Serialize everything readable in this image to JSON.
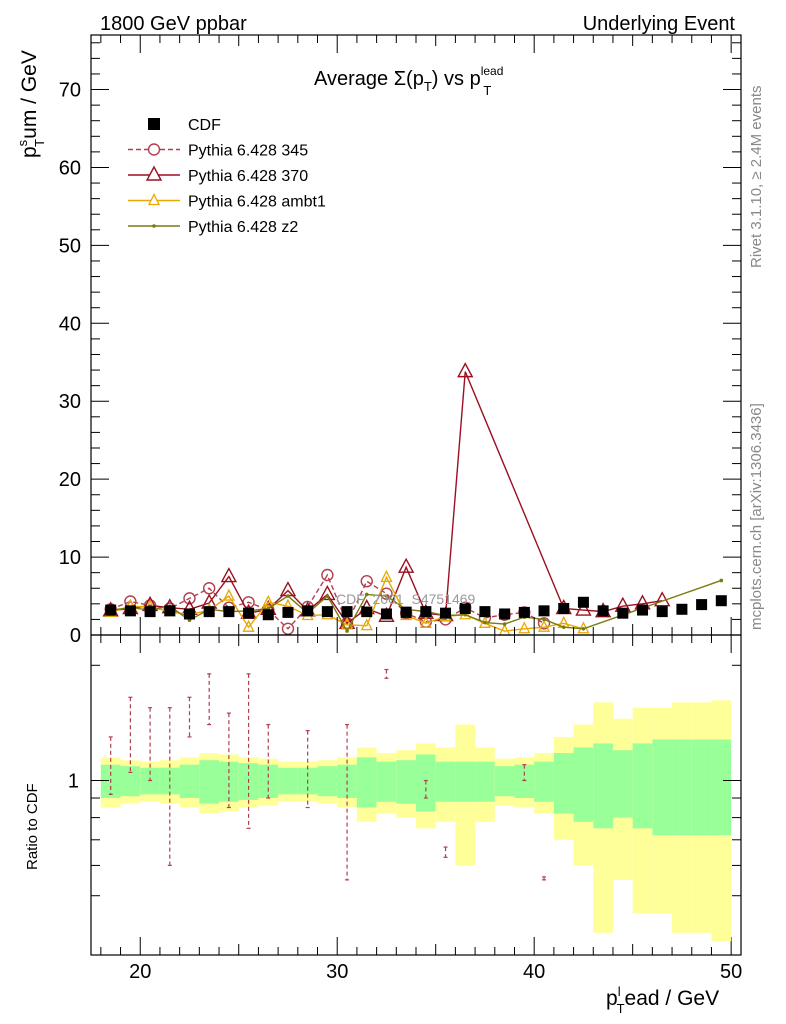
{
  "header": {
    "left": "1800 GeV ppbar",
    "right": "Underlying Event"
  },
  "side_labels": {
    "rivet": "Rivet 3.1.10, ≥ 2.4M events",
    "mcplots": "mcplots.cern.ch [arXiv:1306.3436]"
  },
  "watermark": "CDF_2001_S4751469",
  "chart_data": {
    "type": "line",
    "title": "Average Σ(p_T) vs p_T^lead",
    "title_parts": {
      "main": "Average Σ(p",
      "sub1": "T",
      "mid": ") vs p",
      "sub2": "T",
      "sup2": "lead"
    },
    "ylabel": "p_T^sum / GeV",
    "ylabel_parts": {
      "base": "p",
      "sup": "s",
      "sub": "T",
      "rest": "um / GeV"
    },
    "xlabel": "p_T^lead / GeV",
    "xlabel_parts": {
      "base": "p",
      "sup": "l",
      "sub": "T",
      "rest": "ead / GeV"
    },
    "ratio_ylabel": "Ratio to CDF",
    "xlim": [
      17.5,
      50.5
    ],
    "ylim": [
      0,
      77
    ],
    "x_ticks": [
      20,
      30,
      40,
      50
    ],
    "y_ticks": [
      0,
      10,
      20,
      30,
      40,
      50,
      60,
      70
    ],
    "ratio_ticks": [
      1
    ],
    "legend_position": "top-left",
    "legend": [
      "CDF",
      "Pythia 6.428 345",
      "Pythia 6.428 370",
      "Pythia 6.428 ambt1",
      "Pythia 6.428 z2"
    ],
    "colors": {
      "data": "#000000",
      "p345": "#b04050",
      "p370": "#9a1020",
      "ambt1": "#e8a800",
      "z2": "#7a7a10",
      "band_inner": "#99ff99",
      "band_outer": "#ffff99"
    },
    "data_series": {
      "name": "CDF",
      "x": [
        18.5,
        19.5,
        20.5,
        21.5,
        22.5,
        23.5,
        24.5,
        25.5,
        26.5,
        27.5,
        28.5,
        29.5,
        30.5,
        31.5,
        32.5,
        33.5,
        34.5,
        35.5,
        36.5,
        37.5,
        38.5,
        39.5,
        40.5,
        41.5,
        42.5,
        43.5,
        44.5,
        45.5,
        46.5,
        47.5,
        48.5,
        49.5
      ],
      "y": [
        3.2,
        3.1,
        3.0,
        3.1,
        2.7,
        3.0,
        3.0,
        2.8,
        2.6,
        2.9,
        3.1,
        3.0,
        3.0,
        3.0,
        2.7,
        2.9,
        3.0,
        2.8,
        3.4,
        3.0,
        2.7,
        2.9,
        3.1,
        3.4,
        4.2,
        3.1,
        2.8,
        3.2,
        3.0,
        3.3,
        3.9,
        4.4
      ]
    },
    "series": [
      {
        "name": "Pythia 6.428 345",
        "x": [
          18.5,
          19.5,
          20.5,
          21.5,
          22.5,
          23.5,
          24.5,
          25.5,
          26.5,
          27.5,
          28.5,
          29.5,
          30.5,
          31.5,
          32.5,
          33.5,
          34.5,
          35.5,
          36.5,
          37.5,
          38.5,
          39.5,
          40.5
        ],
        "y": [
          3.3,
          4.3,
          3.8,
          3.4,
          4.7,
          6.0,
          3.5,
          4.2,
          3.2,
          0.8,
          3.6,
          7.7,
          1.5,
          6.9,
          5.3,
          2.8,
          1.7,
          2.0,
          3.5,
          2.2,
          2.6,
          2.9,
          1.5
        ]
      },
      {
        "name": "Pythia 6.428 370",
        "x": [
          18.5,
          19.5,
          20.5,
          21.5,
          22.5,
          23.5,
          24.5,
          25.5,
          26.5,
          27.5,
          28.5,
          29.5,
          30.5,
          31.5,
          32.5,
          33.5,
          34.5,
          35.5,
          36.5,
          41.5,
          42.5,
          43.5,
          44.5,
          45.5,
          46.5
        ],
        "y": [
          3.1,
          3.4,
          3.8,
          3.5,
          3.3,
          4.1,
          7.5,
          2.8,
          3.3,
          5.7,
          3.1,
          5.2,
          1.5,
          3.4,
          2.4,
          8.7,
          2.8,
          2.5,
          33.8,
          3.4,
          3.2,
          3.0,
          3.7,
          4.0,
          4.4
        ]
      },
      {
        "name": "Pythia 6.428 ambt1",
        "x": [
          18.5,
          19.5,
          20.5,
          21.5,
          22.5,
          23.5,
          24.5,
          25.5,
          26.5,
          27.5,
          28.5,
          29.5,
          30.5,
          31.5,
          32.5,
          33.5,
          34.5,
          35.5,
          36.5,
          37.5,
          38.5,
          39.5,
          40.5,
          41.5,
          42.5
        ],
        "y": [
          2.9,
          3.7,
          3.6,
          3.0,
          2.6,
          3.2,
          5.0,
          1.0,
          4.2,
          3.7,
          2.5,
          2.6,
          1.3,
          1.2,
          7.4,
          2.5,
          1.5,
          2.4,
          2.6,
          1.5,
          0.5,
          0.8,
          1.0,
          1.5,
          0.8
        ]
      },
      {
        "name": "Pythia 6.428 z2",
        "x": [
          18.5,
          19.5,
          20.5,
          21.5,
          22.5,
          23.5,
          24.5,
          25.5,
          26.5,
          27.5,
          28.5,
          29.5,
          30.5,
          31.5,
          32.5,
          33.5,
          34.5,
          35.5,
          36.5,
          37.5,
          38.5,
          39.5,
          40.5,
          41.5,
          42.5,
          49.5
        ],
        "y": [
          3.2,
          3.5,
          3.2,
          3.7,
          1.9,
          3.3,
          3.0,
          3.1,
          3.4,
          5.0,
          2.8,
          5.0,
          0.5,
          5.2,
          5.0,
          3.3,
          3.0,
          2.5,
          2.6,
          1.6,
          1.4,
          2.3,
          2.0,
          1.0,
          0.8,
          7.0
        ]
      }
    ],
    "ratio_band": {
      "x": [
        18.5,
        19.5,
        20.5,
        21.5,
        22.5,
        23.5,
        24.5,
        25.5,
        26.5,
        27.5,
        28.5,
        29.5,
        30.5,
        31.5,
        32.5,
        33.5,
        34.5,
        35.5,
        36.5,
        37.5,
        38.5,
        39.5,
        40.5,
        41.5,
        42.5,
        43.5,
        44.5,
        45.5,
        46.5,
        47.5,
        48.5,
        49.5
      ],
      "inner": [
        0.1,
        0.09,
        0.08,
        0.08,
        0.1,
        0.13,
        0.12,
        0.11,
        0.1,
        0.08,
        0.08,
        0.09,
        0.1,
        0.15,
        0.12,
        0.13,
        0.17,
        0.12,
        0.12,
        0.12,
        0.09,
        0.1,
        0.12,
        0.18,
        0.22,
        0.25,
        0.2,
        0.25,
        0.28,
        0.28,
        0.28,
        0.28
      ],
      "outer": [
        0.15,
        0.13,
        0.12,
        0.13,
        0.15,
        0.18,
        0.17,
        0.15,
        0.14,
        0.12,
        0.12,
        0.13,
        0.15,
        0.22,
        0.18,
        0.2,
        0.25,
        0.22,
        0.4,
        0.22,
        0.14,
        0.15,
        0.18,
        0.3,
        0.4,
        0.6,
        0.45,
        0.55,
        0.55,
        0.6,
        0.6,
        0.62
      ]
    },
    "ratio_345": {
      "x": [
        18.5,
        19.5,
        20.5,
        21.5,
        22.5,
        23.5,
        24.5,
        25.5,
        26.5,
        28.5,
        30.5,
        32.5,
        34.5,
        35.5,
        39.5,
        40.5
      ],
      "y": [
        1.03,
        1.35,
        1.3,
        1.1,
        1.75,
        2.0,
        1.15,
        1.5,
        1.2,
        1.18,
        1.1,
        1.9,
        0.95,
        0.65,
        1.05,
        0.55
      ],
      "lo": [
        0.92,
        1.05,
        1.0,
        0.6,
        1.3,
        1.4,
        0.85,
        0.75,
        0.9,
        0.85,
        0.55,
        1.85,
        0.9,
        0.63,
        1.0,
        0.55
      ],
      "hi": [
        1.3,
        1.65,
        1.55,
        1.55,
        1.65,
        1.9,
        1.5,
        1.9,
        1.4,
        1.35,
        1.4,
        1.95,
        1.0,
        0.67,
        1.1,
        0.56
      ]
    }
  }
}
